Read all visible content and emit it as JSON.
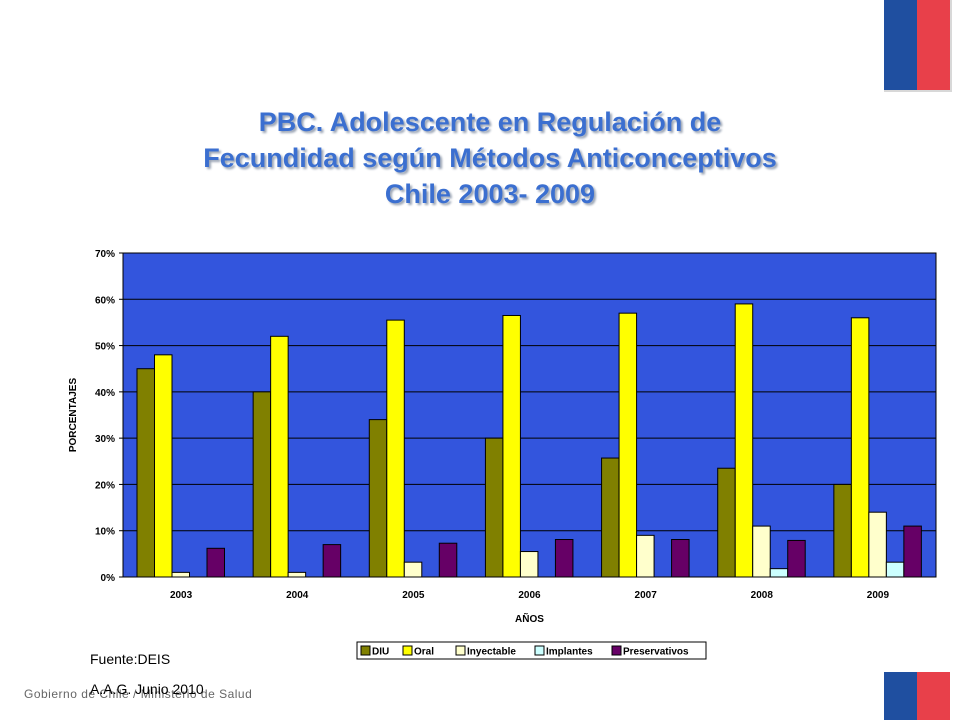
{
  "title": {
    "line1": "PBC. Adolescente en Regulación de",
    "line2": "Fecundidad según Métodos Anticonceptivos",
    "line3": "Chile 2003- 2009"
  },
  "source": "Fuente:DEIS",
  "author": "A.A.G. Junio 2010",
  "footer": "Gobierno de Chile / Ministerio de Salud",
  "colors": {
    "plot_background": "#3355dd",
    "flag_blue": "#1f4fa0",
    "flag_red": "#e8404a"
  },
  "chart_data": {
    "type": "bar",
    "title": "PBC. Adolescente en Regulación de Fecundidad según Métodos Anticonceptivos Chile 2003- 2009",
    "xlabel": "AÑOS",
    "ylabel": "PORCENTAJES",
    "ylim": [
      0,
      70
    ],
    "yticks": [
      0,
      10,
      20,
      30,
      40,
      50,
      60,
      70
    ],
    "ytick_labels": [
      "0%",
      "10%",
      "20%",
      "30%",
      "40%",
      "50%",
      "60%",
      "70%"
    ],
    "grid": true,
    "legend_position": "bottom",
    "categories": [
      "2003",
      "2004",
      "2005",
      "2006",
      "2007",
      "2008",
      "2009"
    ],
    "series": [
      {
        "name": "DIU",
        "color": "#808000",
        "values": [
          45,
          40,
          34,
          30,
          25.7,
          23.5,
          20
        ]
      },
      {
        "name": "Oral",
        "color": "#ffff00",
        "values": [
          48,
          52,
          55.5,
          56.5,
          57,
          59,
          56
        ]
      },
      {
        "name": "Inyectable",
        "color": "#ffffcc",
        "values": [
          1,
          1,
          3.2,
          5.5,
          9,
          11,
          14
        ]
      },
      {
        "name": "Implantes",
        "color": "#ccffff",
        "values": [
          0,
          0,
          0,
          0,
          0,
          1.8,
          3.2
        ]
      },
      {
        "name": "Preservativos",
        "color": "#660066",
        "values": [
          6.2,
          7,
          7.3,
          8.1,
          8.1,
          7.9,
          11
        ]
      }
    ]
  }
}
